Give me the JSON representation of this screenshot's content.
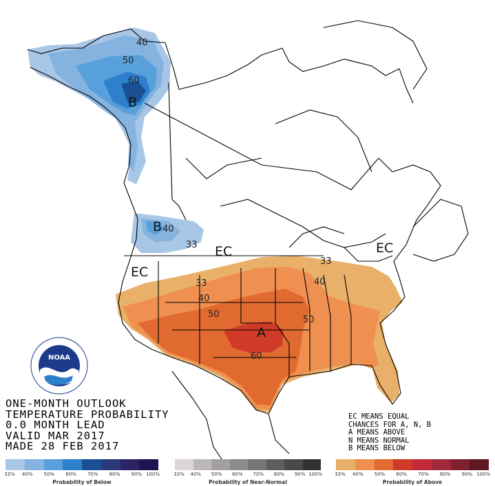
{
  "title_lines": [
    "ONE-MONTH OUTLOOK",
    "TEMPERATURE PROBABILITY",
    "0.0 MONTH LEAD",
    "VALID MAR 2017",
    "MADE 28 FEB 2017"
  ],
  "legend_lines": [
    "EC MEANS EQUAL",
    "CHANCES FOR A, N, B",
    "A MEANS ABOVE",
    "N MEANS NORMAL",
    "B MEANS BELOW"
  ],
  "map_labels": {
    "below_alaska": "B",
    "below_northwest": "B",
    "above_south": "A",
    "ec_west": "EC",
    "ec_central": "EC",
    "ec_northeast": "EC"
  },
  "contour_labels": {
    "ak40": "40",
    "ak50": "50",
    "ak60": "60",
    "nw40": "40",
    "nw33": "33",
    "w33": "33",
    "w40": "40",
    "w50": "50",
    "s60": "60",
    "e33": "33",
    "e40": "40",
    "e50": "50"
  },
  "legend_bars": {
    "below": {
      "label": "Probability of Below",
      "ticks": [
        "33%",
        "40%",
        "50%",
        "60%",
        "70%",
        "80%",
        "90%",
        "100%"
      ],
      "colors": [
        "#a8c6e6",
        "#85b3e0",
        "#58a0dc",
        "#2e7fcc",
        "#1b4f94",
        "#2b3a7a",
        "#2a2465",
        "#1e1550"
      ]
    },
    "normal": {
      "label": "Probability of Near-Normal",
      "ticks": [
        "33%",
        "40%",
        "50%",
        "60%",
        "70%",
        "80%",
        "90%",
        "100%"
      ],
      "colors": [
        "#ddd6d6",
        "#bdb8b8",
        "#a39f9f",
        "#8c8a8a",
        "#767474",
        "#5f5e5e",
        "#4a4949",
        "#333232"
      ]
    },
    "above": {
      "label": "Probability of Above",
      "ticks": [
        "33%",
        "40%",
        "50%",
        "60%",
        "70%",
        "80%",
        "90%",
        "100%"
      ],
      "colors": [
        "#e8b068",
        "#f09050",
        "#e06a30",
        "#d03a28",
        "#c42a3a",
        "#a0283a",
        "#7e2030",
        "#5e1820"
      ]
    }
  },
  "colors": {
    "below_33": "#a8c6e6",
    "below_40": "#85b3e0",
    "below_50": "#58a0dc",
    "below_60": "#2e7fcc",
    "below_70": "#1b4f94",
    "above_33": "#e8b068",
    "above_40": "#f09050",
    "above_50": "#e06a30",
    "above_60": "#d03a28"
  },
  "logo": {
    "text": "NOAA",
    "ring_text": "NATIONAL OCEANIC AND ATMOSPHERIC ADMINISTRATION · U.S. DEPARTMENT OF COMMERCE"
  }
}
